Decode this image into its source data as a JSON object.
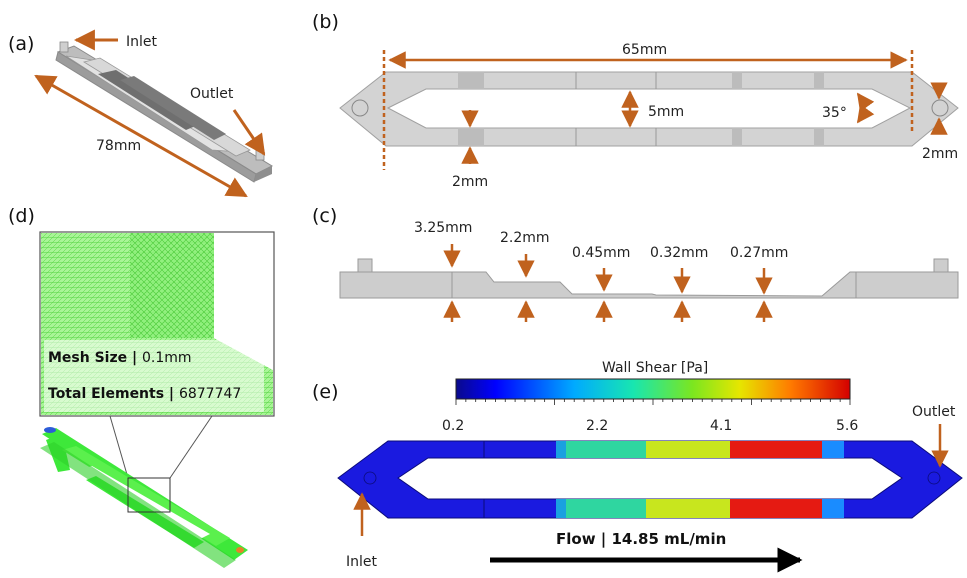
{
  "panels": {
    "a": {
      "label": "(a)",
      "inlet": "Inlet",
      "outlet": "Outlet",
      "length": "78mm"
    },
    "b": {
      "label": "(b)",
      "span": "65mm",
      "gap": "5mm",
      "angle": "35°",
      "width_left": "2mm",
      "width_right": "2mm"
    },
    "c": {
      "label": "(c)",
      "depths": [
        "3.25mm",
        "2.2mm",
        "0.45mm",
        "0.32mm",
        "0.27mm"
      ]
    },
    "d": {
      "label": "(d)",
      "mesh_size_key": "Mesh Size",
      "mesh_size_value": "0.1mm",
      "total_elements_key": "Total Elements",
      "total_elements_value": "6877747"
    },
    "e": {
      "label": "(e)",
      "colorbar_title": "Wall Shear [Pa]",
      "ticks": [
        "0.2",
        "2.2",
        "4.1",
        "5.6"
      ],
      "outlet": "Outlet",
      "inlet": "Inlet",
      "flow": "Flow | 14.85 mL/min"
    }
  },
  "colors": {
    "arrow": "#c0621e",
    "channel_gray": "#cfcfcf",
    "channel_edge": "#9a9a9a",
    "mesh_green": "#4ded3c",
    "shear_low": "#1414e6",
    "shear_mid_low": "#2fd6a0",
    "shear_mid_high": "#c8e61e",
    "shear_high": "#e51a12"
  }
}
